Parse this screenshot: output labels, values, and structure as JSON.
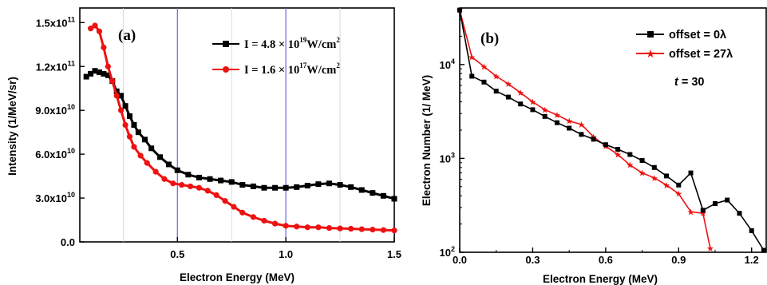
{
  "chart_data": [
    {
      "type": "scatter",
      "panel_label": "(a)",
      "xlabel": "Electron Energy  (MeV)",
      "ylabel": "Intensity (1/MeV/sr)",
      "xlim": [
        0.05,
        1.5
      ],
      "ylim": [
        0,
        160000000000.0
      ],
      "x_ticks": [
        {
          "value": 0.5,
          "label": "0.5"
        },
        {
          "value": 1.0,
          "label": "1.0"
        },
        {
          "value": 1.5,
          "label": "1.5"
        }
      ],
      "y_ticks": [
        {
          "value": 0,
          "label": "0.0",
          "exp": ""
        },
        {
          "value": 30000000000.0,
          "label": "3.0x10",
          "exp": "10"
        },
        {
          "value": 60000000000.0,
          "label": "6.0x10",
          "exp": "10"
        },
        {
          "value": 90000000000.0,
          "label": "9.0x10",
          "exp": "10"
        },
        {
          "value": 120000000000.0,
          "label": "1.2x10",
          "exp": "11"
        },
        {
          "value": 150000000000.0,
          "label": "1.5x10",
          "exp": "11"
        }
      ],
      "vertical_lines": [
        0.25,
        0.5,
        0.75,
        1.0,
        1.25
      ],
      "series": [
        {
          "name": "I = 4.8 × 10^19 W/cm^2",
          "legend": {
            "base": "I = 4.8 × 10",
            "exp": "19",
            "unit": "W/cm",
            "unit_exp": "2"
          },
          "color": "#000000",
          "marker": "square",
          "points": [
            [
              0.08,
              113000000000.0
            ],
            [
              0.1,
              115000000000.0
            ],
            [
              0.12,
              117000000000.0
            ],
            [
              0.14,
              116000000000.0
            ],
            [
              0.16,
              115000000000.0
            ],
            [
              0.18,
              114000000000.0
            ],
            [
              0.2,
              110000000000.0
            ],
            [
              0.22,
              103000000000.0
            ],
            [
              0.24,
              100000000000.0
            ],
            [
              0.26,
              93000000000.0
            ],
            [
              0.28,
              86000000000.0
            ],
            [
              0.3,
              80000000000.0
            ],
            [
              0.32,
              75000000000.0
            ],
            [
              0.35,
              70000000000.0
            ],
            [
              0.38,
              64000000000.0
            ],
            [
              0.42,
              58000000000.0
            ],
            [
              0.46,
              53000000000.0
            ],
            [
              0.5,
              49000000000.0
            ],
            [
              0.55,
              46000000000.0
            ],
            [
              0.6,
              44000000000.0
            ],
            [
              0.65,
              43000000000.0
            ],
            [
              0.7,
              42000000000.0
            ],
            [
              0.75,
              41000000000.0
            ],
            [
              0.8,
              39000000000.0
            ],
            [
              0.85,
              38000000000.0
            ],
            [
              0.9,
              37000000000.0
            ],
            [
              0.95,
              37000000000.0
            ],
            [
              1.0,
              37000000000.0
            ],
            [
              1.05,
              37500000000.0
            ],
            [
              1.1,
              38500000000.0
            ],
            [
              1.15,
              39500000000.0
            ],
            [
              1.2,
              40000000000.0
            ],
            [
              1.25,
              39000000000.0
            ],
            [
              1.3,
              37500000000.0
            ],
            [
              1.35,
              35500000000.0
            ],
            [
              1.4,
              33500000000.0
            ],
            [
              1.45,
              31500000000.0
            ],
            [
              1.5,
              29500000000.0
            ]
          ]
        },
        {
          "name": "I = 1.6 × 10^17 W/cm^2",
          "legend": {
            "base": "I = 1.6 × 10",
            "exp": "17",
            "unit": "W/cm",
            "unit_exp": "2"
          },
          "color": "#ee1111",
          "marker": "circle",
          "points": [
            [
              0.1,
              146000000000.0
            ],
            [
              0.12,
              148000000000.0
            ],
            [
              0.14,
              144000000000.0
            ],
            [
              0.16,
              133000000000.0
            ],
            [
              0.18,
              120000000000.0
            ],
            [
              0.2,
              110000000000.0
            ],
            [
              0.22,
              100000000000.0
            ],
            [
              0.24,
              90000000000.0
            ],
            [
              0.26,
              80000000000.0
            ],
            [
              0.28,
              72000000000.0
            ],
            [
              0.3,
              65000000000.0
            ],
            [
              0.33,
              59000000000.0
            ],
            [
              0.36,
              54000000000.0
            ],
            [
              0.4,
              48000000000.0
            ],
            [
              0.44,
              43000000000.0
            ],
            [
              0.48,
              40000000000.0
            ],
            [
              0.52,
              39000000000.0
            ],
            [
              0.56,
              38000000000.0
            ],
            [
              0.6,
              37000000000.0
            ],
            [
              0.64,
              35000000000.0
            ],
            [
              0.68,
              32000000000.0
            ],
            [
              0.72,
              28000000000.0
            ],
            [
              0.76,
              24000000000.0
            ],
            [
              0.8,
              20000000000.0
            ],
            [
              0.85,
              17000000000.0
            ],
            [
              0.9,
              14500000000.0
            ],
            [
              0.95,
              12500000000.0
            ],
            [
              1.0,
              11000000000.0
            ],
            [
              1.05,
              10500000000.0
            ],
            [
              1.1,
              10000000000.0
            ],
            [
              1.15,
              10000000000.0
            ],
            [
              1.2,
              9500000000.0
            ],
            [
              1.25,
              9200000000.0
            ],
            [
              1.3,
              9000000000.0
            ],
            [
              1.35,
              8700000000.0
            ],
            [
              1.4,
              8400000000.0
            ],
            [
              1.45,
              8100000000.0
            ],
            [
              1.5,
              7800000000.0
            ]
          ]
        }
      ]
    },
    {
      "type": "line",
      "panel_label": "(b)",
      "xlabel": "Electron Energy (MeV)",
      "ylabel": "Electron Number (1/ MeV)",
      "xlim": [
        0.0,
        1.26
      ],
      "ylim": [
        100,
        40000
      ],
      "yscale": "log",
      "annotation": {
        "italic": "t",
        "text": " = 30"
      },
      "x_ticks": [
        {
          "value": 0.0,
          "label": "0.0"
        },
        {
          "value": 0.3,
          "label": "0.3"
        },
        {
          "value": 0.6,
          "label": "0.6"
        },
        {
          "value": 0.9,
          "label": "0.9"
        },
        {
          "value": 1.2,
          "label": "1.2"
        }
      ],
      "y_ticks": [
        {
          "value": 100,
          "base": "10",
          "exp": "2"
        },
        {
          "value": 1000,
          "base": "10",
          "exp": "3"
        },
        {
          "value": 10000,
          "base": "10",
          "exp": "4"
        }
      ],
      "series": [
        {
          "name": "offset = 0λ",
          "legend": "offset = 0λ",
          "color": "#000000",
          "marker": "square",
          "x": [
            0.0,
            0.05,
            0.1,
            0.15,
            0.2,
            0.25,
            0.3,
            0.35,
            0.4,
            0.45,
            0.5,
            0.55,
            0.6,
            0.65,
            0.7,
            0.75,
            0.8,
            0.85,
            0.9,
            0.95,
            1.0,
            1.05,
            1.1,
            1.15,
            1.2,
            1.25
          ],
          "y": [
            38000,
            7500,
            6500,
            5200,
            4500,
            3800,
            3300,
            2800,
            2400,
            2100,
            1800,
            1600,
            1400,
            1250,
            1100,
            950,
            800,
            650,
            520,
            700,
            280,
            330,
            360,
            260,
            170,
            105
          ]
        },
        {
          "name": "offset = 27λ",
          "legend": "offset = 27λ",
          "color": "#ee1111",
          "marker": "star",
          "x": [
            0.0,
            0.05,
            0.1,
            0.15,
            0.2,
            0.25,
            0.3,
            0.35,
            0.4,
            0.45,
            0.5,
            0.55,
            0.6,
            0.65,
            0.7,
            0.75,
            0.8,
            0.85,
            0.9,
            0.95,
            1.0,
            1.03
          ],
          "y": [
            38000,
            12000,
            9500,
            7500,
            6200,
            5000,
            4000,
            3300,
            2900,
            2500,
            2300,
            1700,
            1350,
            1100,
            850,
            700,
            620,
            520,
            420,
            270,
            260,
            110
          ]
        }
      ]
    }
  ]
}
